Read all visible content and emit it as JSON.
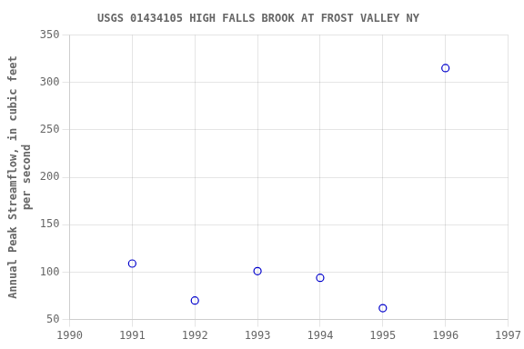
{
  "chart_data": {
    "type": "scatter",
    "title": "USGS 01434105 HIGH FALLS BROOK AT FROST VALLEY NY",
    "ylabel": [
      "Annual Peak Streamflow, in cubic feet",
      "per second"
    ],
    "x": [
      1991,
      1992,
      1993,
      1994,
      1995,
      1996
    ],
    "values": [
      109,
      70,
      101,
      94,
      62,
      315
    ],
    "color": "#0000cc",
    "marker": "circle",
    "xlim": [
      1990,
      1997
    ],
    "ylim": [
      50,
      350
    ],
    "xticks": [
      1990,
      1991,
      1992,
      1993,
      1994,
      1995,
      1996,
      1997
    ],
    "yticks": [
      50,
      100,
      150,
      200,
      250,
      300,
      350
    ],
    "grid": true
  }
}
